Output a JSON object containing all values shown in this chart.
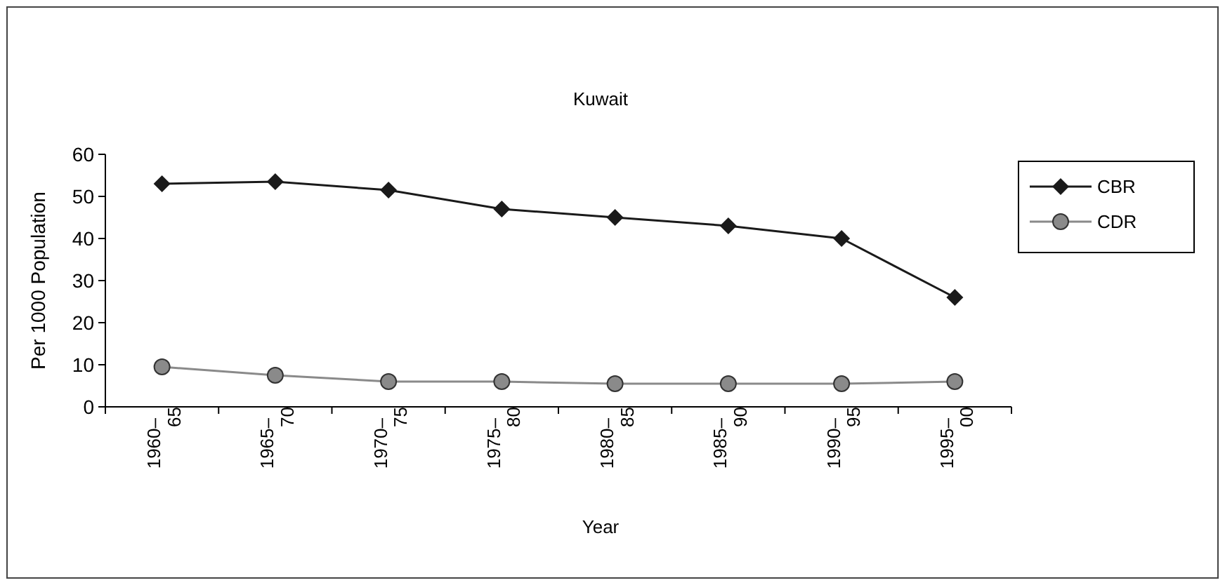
{
  "chart_data": {
    "type": "line",
    "title": "Kuwait",
    "xlabel": "Year",
    "ylabel": "Per 1000 Population",
    "categories": [
      "1960–65",
      "1965–70",
      "1970–75",
      "1975–80",
      "1980–85",
      "1985–90",
      "1990–95",
      "1995–00"
    ],
    "series": [
      {
        "name": "CBR",
        "color": "#1a1a1a",
        "marker": "diamond",
        "values": [
          53,
          53.5,
          51.5,
          47,
          45,
          43,
          40,
          26
        ]
      },
      {
        "name": "CDR",
        "color": "#8a8a8a",
        "marker": "circle",
        "values": [
          9.5,
          7.5,
          6,
          6,
          5.5,
          5.5,
          5.5,
          6
        ]
      }
    ],
    "ylim": [
      0,
      60
    ],
    "yticks": [
      0,
      10,
      20,
      30,
      40,
      50,
      60
    ],
    "grid": false,
    "legend": "top right"
  }
}
